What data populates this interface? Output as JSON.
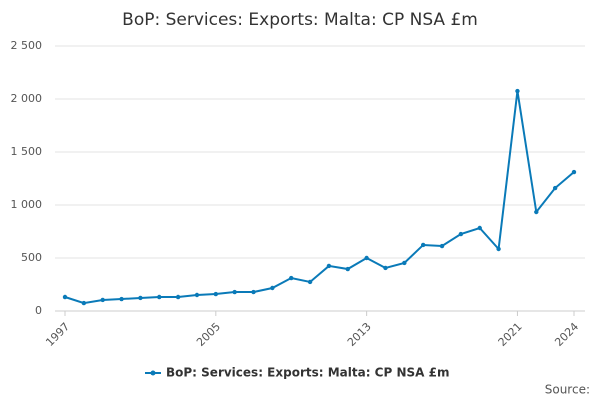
{
  "chart_data": {
    "type": "line",
    "title": "BoP: Services: Exports: Malta: CP NSA £m",
    "x": [
      1997,
      1998,
      1999,
      2000,
      2001,
      2002,
      2003,
      2004,
      2005,
      2006,
      2007,
      2008,
      2009,
      2010,
      2011,
      2012,
      2013,
      2014,
      2015,
      2016,
      2017,
      2018,
      2019,
      2020,
      2021,
      2022,
      2023,
      2024
    ],
    "series": [
      {
        "name": "BoP: Services: Exports: Malta: CP NSA £m",
        "color": "#0a7ab8",
        "values": [
          132,
          75,
          104,
          113,
          123,
          132,
          132,
          151,
          160,
          179,
          179,
          217,
          311,
          274,
          425,
          396,
          500,
          406,
          453,
          623,
          613,
          726,
          783,
          585,
          2075,
          934,
          1160,
          1311
        ]
      }
    ],
    "xlim": [
      1997,
      2024
    ],
    "xticks": [
      1997,
      2005,
      2013,
      2021,
      2024
    ],
    "ylim": [
      0,
      2500
    ],
    "yticks": [
      0,
      500,
      {
        "value": 1000,
        "label": "1 000"
      },
      {
        "value": 1500,
        "label": "1 500"
      },
      {
        "value": 2000,
        "label": "2 000"
      },
      {
        "value": 2500,
        "label": "2 500"
      }
    ],
    "grid": true,
    "source": "Source:"
  }
}
